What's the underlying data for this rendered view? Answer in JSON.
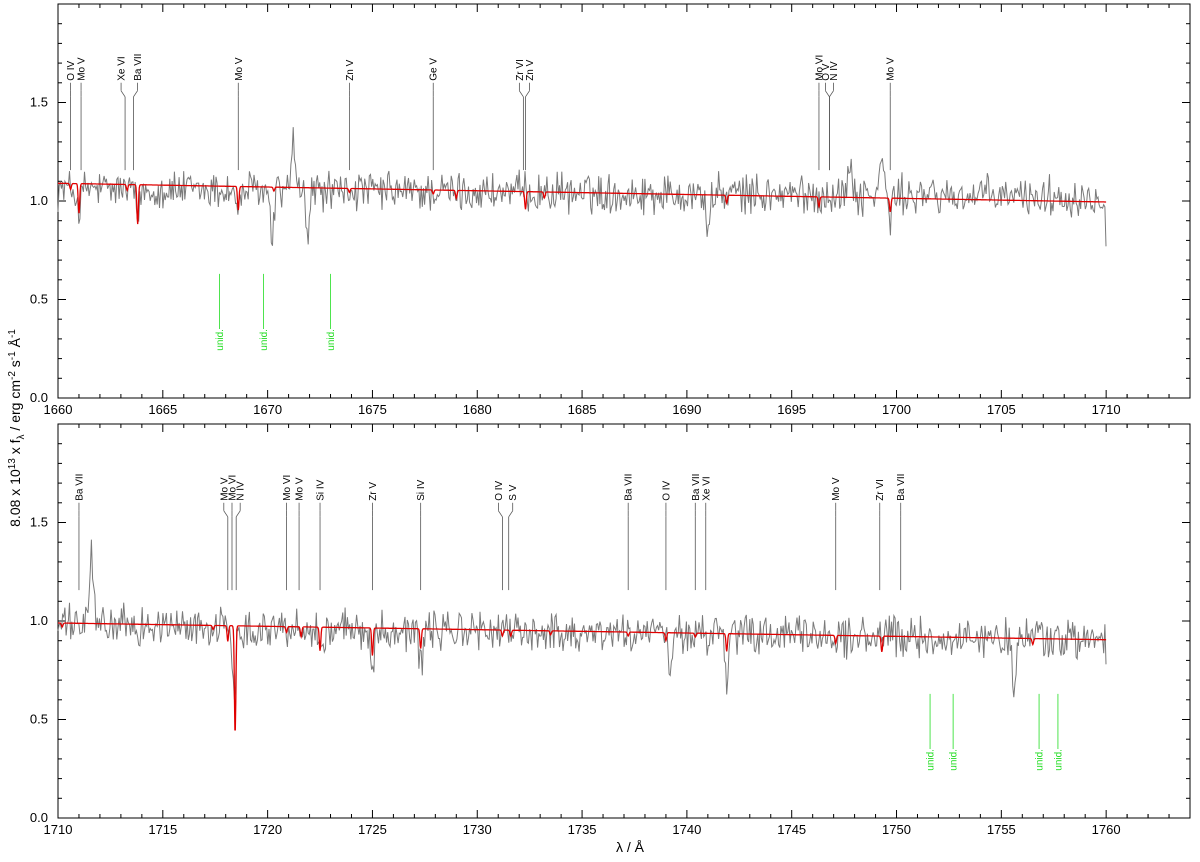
{
  "chart_data": {
    "type": "line",
    "ylabel_parts": {
      "prefix": "8.08 x 10",
      "exp": "13",
      "mid1": " x f",
      "sub": "λ",
      "mid2": " / erg cm",
      "exp2": "-2",
      "mid3": " s",
      "exp3": "-1",
      "mid4": " Å",
      "exp4": "-1"
    },
    "xlabel": "λ / Å",
    "colors": {
      "observed": "#7a7a7a",
      "model": "#e00000",
      "unid": "#22dd22",
      "tick": "#000000"
    },
    "panels": [
      {
        "xlim": [
          1660,
          1714
        ],
        "ylim": [
          0.0,
          2.0
        ],
        "xticks": [
          "1660",
          "1665",
          "1670",
          "1675",
          "1680",
          "1685",
          "1690",
          "1695",
          "1700",
          "1705",
          "1710"
        ],
        "yticks": [
          "0.0",
          "0.5",
          "1.0",
          "1.5"
        ],
        "series": [
          {
            "key": "observed",
            "x_range": [
              1660,
              1710
            ],
            "mean_start": 1.06,
            "mean_end": 1.02,
            "end_value": 0.77,
            "features": [
              {
                "x": 1661.0,
                "depth": 0.12
              },
              {
                "x": 1663.8,
                "depth": 0.15
              },
              {
                "x": 1668.6,
                "depth": 0.12
              },
              {
                "x": 1670.2,
                "depth": 0.25
              },
              {
                "x": 1671.2,
                "peak": 0.26
              },
              {
                "x": 1671.9,
                "depth": 0.22
              },
              {
                "x": 1691.0,
                "depth": 0.2
              },
              {
                "x": 1697.8,
                "peak": 0.2
              },
              {
                "x": 1699.3,
                "peak": 0.22
              },
              {
                "x": 1699.7,
                "depth": 0.12
              }
            ]
          },
          {
            "key": "model",
            "x_range": [
              1660,
              1710
            ],
            "start": 1.09,
            "end": 0.995,
            "lines": [
              {
                "x": 1660.6,
                "depth": 0.03
              },
              {
                "x": 1661.0,
                "depth": 0.15
              },
              {
                "x": 1663.3,
                "depth": 0.03
              },
              {
                "x": 1663.8,
                "depth": 0.2
              },
              {
                "x": 1668.6,
                "depth": 0.12
              },
              {
                "x": 1670.3,
                "depth": 0.02
              },
              {
                "x": 1673.9,
                "depth": 0.02
              },
              {
                "x": 1677.9,
                "depth": 0.02
              },
              {
                "x": 1679.0,
                "depth": 0.04
              },
              {
                "x": 1682.3,
                "depth": 0.09
              },
              {
                "x": 1683.2,
                "depth": 0.03
              },
              {
                "x": 1691.9,
                "depth": 0.04
              },
              {
                "x": 1696.3,
                "depth": 0.05
              },
              {
                "x": 1699.7,
                "depth": 0.07
              }
            ]
          }
        ],
        "lines": [
          {
            "label": "O IV",
            "x": 1660.6
          },
          {
            "label": "Mo V",
            "x": 1661.1
          },
          {
            "label": "Xe VI",
            "x": 1663.2
          },
          {
            "label": "Ba VII",
            "x": 1663.6
          },
          {
            "label": "Mo V",
            "x": 1668.6
          },
          {
            "label": "Zn V",
            "x": 1673.9
          },
          {
            "label": "Ge V",
            "x": 1677.9
          },
          {
            "label": "Zr VI",
            "x": 1682.2
          },
          {
            "label": "Zn V",
            "x": 1682.3
          },
          {
            "label": "Mo VI",
            "x": 1696.3
          },
          {
            "label": "O V",
            "x": 1696.8
          },
          {
            "label": "N IV",
            "x": 1696.8
          },
          {
            "label": "Mo V",
            "x": 1699.7
          }
        ],
        "unid": [
          {
            "label": "unid.",
            "x": 1667.7
          },
          {
            "label": "unid.",
            "x": 1669.8
          },
          {
            "label": "unid.",
            "x": 1673.0
          }
        ]
      },
      {
        "xlim": [
          1710,
          1764
        ],
        "ylim": [
          0.0,
          2.0
        ],
        "xticks": [
          "1710",
          "1715",
          "1720",
          "1725",
          "1730",
          "1735",
          "1740",
          "1745",
          "1750",
          "1755",
          "1760"
        ],
        "yticks": [
          "0.0",
          "0.5",
          "1.0",
          "1.5"
        ],
        "series": [
          {
            "key": "observed",
            "x_range": [
              1710,
              1760
            ],
            "mean_start": 0.98,
            "mean_end": 0.9,
            "end_value": 0.78,
            "features": [
              {
                "x": 1711.6,
                "peak": 0.4
              },
              {
                "x": 1718.4,
                "depth": 0.3
              },
              {
                "x": 1722.6,
                "depth": 0.15
              },
              {
                "x": 1725.0,
                "depth": 0.18
              },
              {
                "x": 1727.3,
                "depth": 0.2
              },
              {
                "x": 1739.2,
                "depth": 0.2
              },
              {
                "x": 1741.9,
                "depth": 0.25
              },
              {
                "x": 1755.6,
                "depth": 0.22
              },
              {
                "x": 1756.8,
                "peak": 0.15
              }
            ]
          },
          {
            "key": "model",
            "x_range": [
              1710,
              1760
            ],
            "start": 0.99,
            "end": 0.905,
            "lines": [
              {
                "x": 1710.2,
                "depth": 0.02
              },
              {
                "x": 1717.4,
                "depth": 0.02
              },
              {
                "x": 1718.1,
                "depth": 0.08
              },
              {
                "x": 1718.45,
                "depth": 0.55
              },
              {
                "x": 1720.9,
                "depth": 0.03
              },
              {
                "x": 1721.6,
                "depth": 0.05
              },
              {
                "x": 1722.5,
                "depth": 0.12
              },
              {
                "x": 1725.0,
                "depth": 0.14
              },
              {
                "x": 1727.3,
                "depth": 0.1
              },
              {
                "x": 1731.2,
                "depth": 0.03
              },
              {
                "x": 1731.6,
                "depth": 0.03
              },
              {
                "x": 1733.5,
                "depth": 0.02
              },
              {
                "x": 1737.2,
                "depth": 0.02
              },
              {
                "x": 1739.0,
                "depth": 0.04
              },
              {
                "x": 1740.4,
                "depth": 0.02
              },
              {
                "x": 1741.9,
                "depth": 0.09
              },
              {
                "x": 1747.1,
                "depth": 0.04
              },
              {
                "x": 1749.3,
                "depth": 0.08
              },
              {
                "x": 1756.5,
                "depth": 0.03
              }
            ]
          }
        ],
        "lines": [
          {
            "label": "Ba VII",
            "x": 1711.0
          },
          {
            "label": "Mo V",
            "x": 1718.1
          },
          {
            "label": "Mo VI",
            "x": 1718.3
          },
          {
            "label": "N IV",
            "x": 1718.5
          },
          {
            "label": "Mo VI",
            "x": 1720.9
          },
          {
            "label": "Mo V",
            "x": 1721.5
          },
          {
            "label": "Si IV",
            "x": 1722.5
          },
          {
            "label": "Zr V",
            "x": 1725.0
          },
          {
            "label": "Si IV",
            "x": 1727.3
          },
          {
            "label": "O IV",
            "x": 1731.2
          },
          {
            "label": "S V",
            "x": 1731.5
          },
          {
            "label": "Ba VII",
            "x": 1737.2
          },
          {
            "label": "O IV",
            "x": 1739.0
          },
          {
            "label": "Ba VII",
            "x": 1740.4
          },
          {
            "label": "Xe VI",
            "x": 1740.9
          },
          {
            "label": "Mo V",
            "x": 1747.1
          },
          {
            "label": "Zr VI",
            "x": 1749.2
          },
          {
            "label": "Ba VII",
            "x": 1750.2
          }
        ],
        "unid": [
          {
            "label": "unid.",
            "x": 1751.6
          },
          {
            "label": "unid.",
            "x": 1752.7
          },
          {
            "label": "unid.",
            "x": 1756.8
          },
          {
            "label": "unid.",
            "x": 1757.7
          }
        ]
      }
    ]
  }
}
